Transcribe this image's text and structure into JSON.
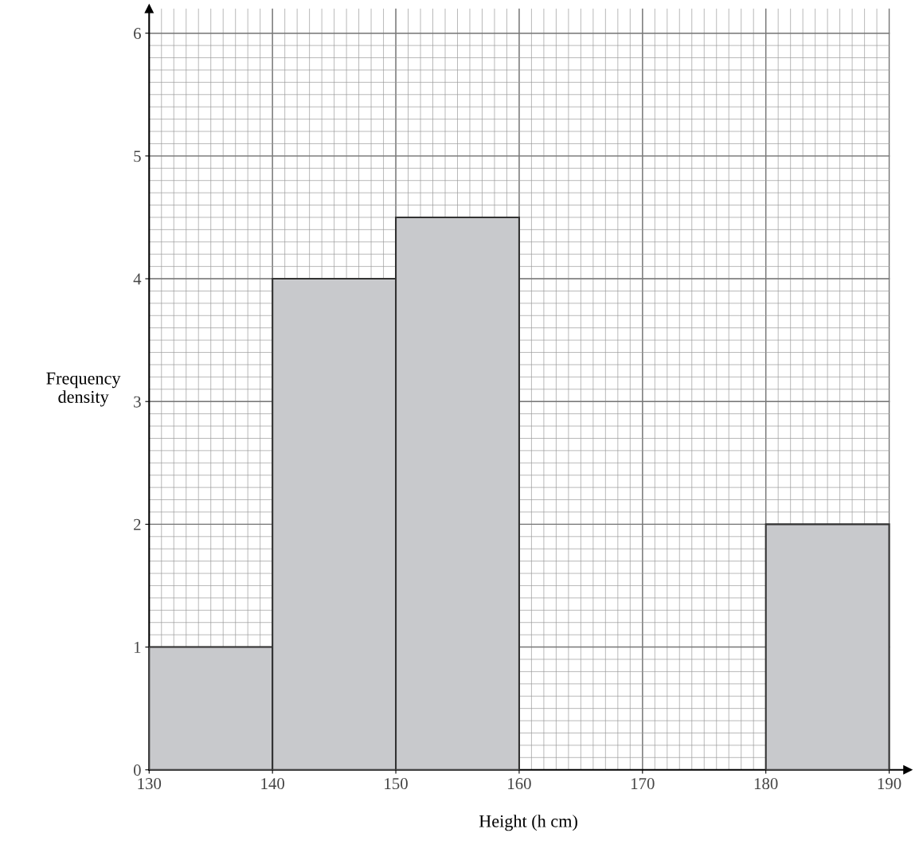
{
  "chart_data": {
    "type": "histogram",
    "xlabel": "Height (h cm)",
    "ylabel": "Frequency\ndensity",
    "bins": [
      130,
      140,
      150,
      160,
      180,
      190
    ],
    "values": [
      1,
      4,
      4.5,
      null,
      2
    ],
    "color": "#c8c9cc",
    "xlim": [
      130,
      191.5
    ],
    "ylim": [
      0,
      6.2
    ],
    "xticks": [
      130,
      140,
      150,
      160,
      170,
      180,
      190
    ],
    "yticks": [
      0,
      1,
      2,
      3,
      4,
      5,
      6
    ],
    "grid": true
  }
}
